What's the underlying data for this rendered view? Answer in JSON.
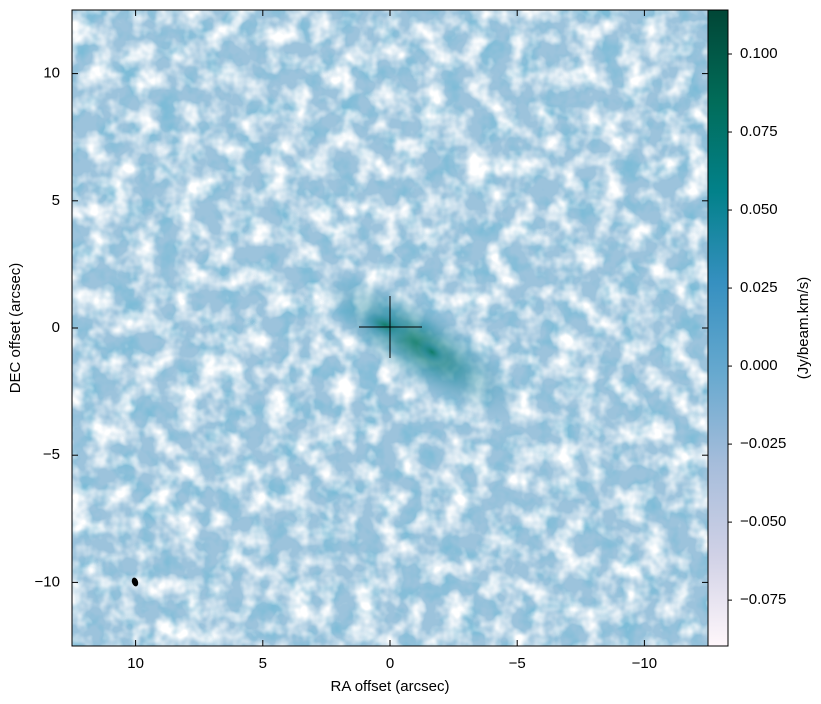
{
  "chart_data": {
    "type": "image",
    "xlabel": "RA offset (arcsec)",
    "ylabel": "DEC offset (arcsec)",
    "xlim": [
      12.5,
      -12.5
    ],
    "ylim": [
      -12.5,
      12.5
    ],
    "xticks": [
      10,
      5,
      0,
      {
        "value": -5,
        "label": "−5"
      },
      {
        "value": -10,
        "label": "−10"
      }
    ],
    "yticks": [
      {
        "value": -10,
        "label": "−10"
      },
      {
        "value": -5,
        "label": "−5"
      },
      0,
      5,
      10
    ],
    "colorbar": {
      "label": "(Jy/beam.km/s)",
      "lim": [
        -0.0897,
        0.1141
      ],
      "ticks": [
        {
          "value": -0.075,
          "label": "−0.075"
        },
        {
          "value": -0.05,
          "label": "−0.050"
        },
        {
          "value": -0.025,
          "label": "−0.025"
        },
        {
          "value": 0,
          "label": "0.000"
        },
        {
          "value": 0.025,
          "label": "0.025"
        },
        {
          "value": 0.05,
          "label": "0.050"
        },
        {
          "value": 0.075,
          "label": "0.075"
        },
        {
          "value": 0.1,
          "label": "0.100"
        }
      ],
      "colormap": [
        "#fff7fb",
        "#d0d1e6",
        "#a6bddb",
        "#67a9cf",
        "#3690c0",
        "#02818a",
        "#016c59",
        "#014636"
      ]
    }
  }
}
